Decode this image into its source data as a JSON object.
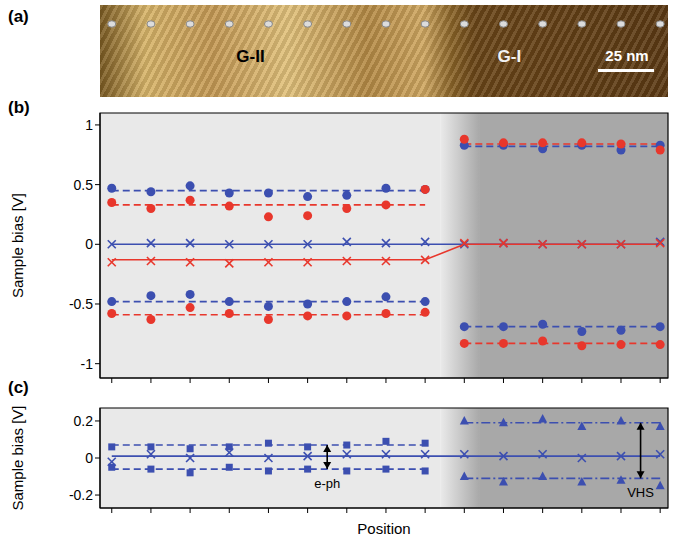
{
  "image": {
    "panel": "(a)",
    "labels": [
      "G-II",
      "G-I"
    ],
    "scale_bar": "25 nm"
  },
  "chart_data": [
    {
      "panel": "(b)",
      "type": "scatter",
      "ylabel": "Sample bias [V]",
      "x": [
        1,
        2,
        3,
        4,
        5,
        6,
        7,
        8,
        9,
        10,
        11,
        12,
        13,
        14,
        15
      ],
      "xlim": [
        0.7,
        15.2
      ],
      "xticks": [
        1,
        2,
        3,
        4,
        5,
        6,
        7,
        8,
        9,
        10,
        11,
        12,
        13,
        14,
        15
      ],
      "ylim": [
        -1.12,
        1.1
      ],
      "yticks": [
        -1,
        -0.5,
        0,
        0.5,
        1
      ],
      "tick_labels": "y",
      "shading": [
        {
          "x": [
            0.7,
            9.4
          ],
          "color": "#e9e9e9"
        },
        {
          "x": [
            9.4,
            10.4
          ],
          "colors": [
            "#e9e9e9",
            "#a8a8a8"
          ]
        },
        {
          "x": [
            10.4,
            15.2
          ],
          "color": "#a8a8a8"
        }
      ],
      "series": [
        {
          "type": "line",
          "color": "#3c4fb0",
          "line_style": "dashed",
          "values": [
            0.45,
            0.45,
            0.45,
            0.45,
            0.45,
            0.45,
            0.45,
            0.45,
            0.45,
            null,
            null,
            null,
            null,
            null,
            null
          ]
        },
        {
          "type": "line",
          "color": "#3c4fb0",
          "line_style": "dashed",
          "values": [
            null,
            null,
            null,
            null,
            null,
            null,
            null,
            null,
            null,
            0.82,
            0.82,
            0.82,
            0.82,
            0.82,
            0.82
          ]
        },
        {
          "type": "line",
          "color": "#e8372c",
          "line_style": "dashed",
          "values": [
            0.33,
            0.33,
            0.33,
            0.33,
            0.33,
            0.33,
            0.33,
            0.33,
            0.33,
            null,
            null,
            null,
            null,
            null,
            null
          ]
        },
        {
          "type": "line",
          "color": "#e8372c",
          "line_style": "dashed",
          "values": [
            null,
            null,
            null,
            null,
            null,
            null,
            null,
            null,
            null,
            0.84,
            0.84,
            0.84,
            0.84,
            0.84,
            0.84
          ]
        },
        {
          "type": "line",
          "color": "#3c4fb0",
          "line_style": "dashed",
          "values": [
            -0.48,
            -0.48,
            -0.48,
            -0.48,
            -0.48,
            -0.48,
            -0.48,
            -0.48,
            -0.48,
            null,
            null,
            null,
            null,
            null,
            null
          ]
        },
        {
          "type": "line",
          "color": "#3c4fb0",
          "line_style": "dashed",
          "values": [
            null,
            null,
            null,
            null,
            null,
            null,
            null,
            null,
            null,
            -0.69,
            -0.69,
            -0.69,
            -0.69,
            -0.69,
            -0.69
          ]
        },
        {
          "type": "line",
          "color": "#e8372c",
          "line_style": "dashed",
          "values": [
            -0.59,
            -0.59,
            -0.59,
            -0.59,
            -0.59,
            -0.59,
            -0.59,
            -0.59,
            -0.59,
            null,
            null,
            null,
            null,
            null,
            null
          ]
        },
        {
          "type": "line",
          "color": "#e8372c",
          "line_style": "dashed",
          "values": [
            null,
            null,
            null,
            null,
            null,
            null,
            null,
            null,
            null,
            -0.83,
            -0.83,
            -0.83,
            -0.83,
            -0.83,
            -0.83
          ]
        },
        {
          "type": "line",
          "color": "#3c4fb0",
          "line_style": "solid",
          "values": [
            0,
            0,
            0,
            0,
            0,
            0,
            0,
            0,
            0,
            0,
            0,
            0,
            0,
            0,
            0
          ]
        },
        {
          "type": "line",
          "color": "#e8372c",
          "line_style": "solid",
          "values": [
            -0.13,
            -0.13,
            -0.13,
            -0.13,
            -0.13,
            -0.13,
            -0.13,
            -0.13,
            -0.13,
            0,
            0,
            0,
            0,
            0,
            0
          ]
        },
        {
          "type": "scatter",
          "color": "#3c4fb0",
          "marker": "circle",
          "values": [
            0.47,
            0.44,
            0.49,
            0.43,
            0.43,
            0.4,
            0.41,
            0.47,
            0.46,
            0.83,
            0.83,
            0.8,
            0.83,
            0.79,
            0.83
          ]
        },
        {
          "type": "scatter",
          "color": "#e8372c",
          "marker": "circle",
          "values": [
            0.35,
            0.3,
            0.37,
            0.32,
            0.23,
            0.24,
            0.3,
            0.33,
            0.46,
            0.88,
            0.85,
            0.85,
            0.85,
            0.84,
            0.79
          ]
        },
        {
          "type": "scatter",
          "color": "#3c4fb0",
          "marker": "x",
          "values": [
            0,
            0.01,
            0.01,
            0,
            0,
            0,
            0.02,
            0.01,
            0.02,
            0,
            0.01,
            0,
            0,
            0,
            0.02
          ]
        },
        {
          "type": "scatter",
          "color": "#e8372c",
          "marker": "x",
          "values": [
            -0.15,
            -0.14,
            -0.15,
            -0.16,
            -0.15,
            -0.15,
            -0.14,
            -0.14,
            -0.13,
            0.01,
            0.01,
            0,
            0,
            0,
            0.01
          ]
        },
        {
          "type": "scatter",
          "color": "#3c4fb0",
          "marker": "circle",
          "values": [
            -0.48,
            -0.43,
            -0.42,
            -0.48,
            -0.52,
            -0.5,
            -0.48,
            -0.44,
            -0.48,
            -0.69,
            -0.69,
            -0.67,
            -0.73,
            -0.72,
            -0.69
          ]
        },
        {
          "type": "scatter",
          "color": "#e8372c",
          "marker": "circle",
          "values": [
            -0.58,
            -0.63,
            -0.53,
            -0.58,
            -0.63,
            -0.6,
            -0.6,
            -0.58,
            -0.57,
            -0.83,
            -0.83,
            -0.81,
            -0.85,
            -0.84,
            -0.84
          ]
        }
      ]
    },
    {
      "panel": "(c)",
      "type": "scatter",
      "ylabel": "Sample bias [V]",
      "xlabel": "Position",
      "x": [
        1,
        2,
        3,
        4,
        5,
        6,
        7,
        8,
        9,
        10,
        11,
        12,
        13,
        14,
        15
      ],
      "xlim": [
        0.7,
        15.2
      ],
      "xticks": [
        1,
        2,
        3,
        4,
        5,
        6,
        7,
        8,
        9,
        10,
        11,
        12,
        13,
        14,
        15
      ],
      "ylim": [
        -0.27,
        0.27
      ],
      "yticks": [
        -0.2,
        0,
        0.2
      ],
      "tick_labels": "y",
      "shading": [
        {
          "x": [
            0.7,
            9.4
          ],
          "color": "#e9e9e9"
        },
        {
          "x": [
            9.4,
            10.4
          ],
          "colors": [
            "#e9e9e9",
            "#a8a8a8"
          ]
        },
        {
          "x": [
            10.4,
            15.2
          ],
          "color": "#a8a8a8"
        }
      ],
      "series": [
        {
          "type": "line",
          "color": "#3c4fb0",
          "line_style": "dashed",
          "values": [
            0.07,
            0.07,
            0.07,
            0.07,
            0.07,
            0.07,
            0.07,
            0.07,
            0.07,
            null,
            null,
            null,
            null,
            null,
            null
          ]
        },
        {
          "type": "line",
          "color": "#3c4fb0",
          "line_style": "dashed",
          "values": [
            -0.06,
            -0.06,
            -0.06,
            -0.06,
            -0.06,
            -0.06,
            -0.06,
            -0.06,
            -0.06,
            null,
            null,
            null,
            null,
            null,
            null
          ]
        },
        {
          "type": "line",
          "color": "#3c4fb0",
          "line_style": "dashdot",
          "values": [
            null,
            null,
            null,
            null,
            null,
            null,
            null,
            null,
            null,
            0.19,
            0.19,
            0.19,
            0.19,
            0.19,
            0.19
          ]
        },
        {
          "type": "line",
          "color": "#3c4fb0",
          "line_style": "dashdot",
          "values": [
            null,
            null,
            null,
            null,
            null,
            null,
            null,
            null,
            null,
            -0.11,
            -0.11,
            -0.11,
            -0.11,
            -0.11,
            -0.11
          ]
        },
        {
          "type": "line",
          "color": "#3c4fb0",
          "line_style": "solid",
          "values": [
            0.01,
            0.01,
            0.01,
            0.01,
            0.01,
            0.01,
            0.01,
            0.01,
            0.01,
            0.01,
            0.01,
            0.01,
            0.01,
            0.01,
            0.01
          ]
        },
        {
          "type": "scatter",
          "color": "#3c4fb0",
          "marker": "square",
          "values": [
            0.06,
            0.06,
            0.05,
            0.06,
            0.08,
            0.06,
            0.07,
            0.09,
            0.08,
            null,
            null,
            null,
            null,
            null,
            null
          ]
        },
        {
          "type": "scatter",
          "color": "#3c4fb0",
          "marker": "square",
          "values": [
            -0.05,
            -0.06,
            -0.08,
            -0.05,
            -0.07,
            -0.06,
            -0.07,
            -0.06,
            -0.07,
            null,
            null,
            null,
            null,
            null,
            null
          ]
        },
        {
          "type": "scatter",
          "color": "#3c4fb0",
          "marker": "triangle",
          "values": [
            null,
            null,
            null,
            null,
            null,
            null,
            null,
            null,
            null,
            0.2,
            0.19,
            0.21,
            0.17,
            0.2,
            0.17
          ]
        },
        {
          "type": "scatter",
          "color": "#3c4fb0",
          "marker": "triangle",
          "values": [
            null,
            null,
            null,
            null,
            null,
            null,
            null,
            null,
            null,
            -0.1,
            -0.13,
            -0.1,
            -0.13,
            -0.12,
            -0.15
          ]
        },
        {
          "type": "scatter",
          "color": "#3c4fb0",
          "marker": "x",
          "values": [
            -0.02,
            0.02,
            0,
            0.03,
            0,
            0.01,
            0.02,
            0.02,
            0.02,
            0.02,
            0.01,
            0.02,
            0,
            0.01,
            0.02
          ]
        }
      ],
      "annotations": [
        {
          "text": "e-ph",
          "x": 6.5,
          "y": [
            -0.06,
            0.07
          ]
        },
        {
          "text": "VHS",
          "x": 14.5,
          "y": [
            -0.11,
            0.19
          ]
        }
      ]
    }
  ]
}
